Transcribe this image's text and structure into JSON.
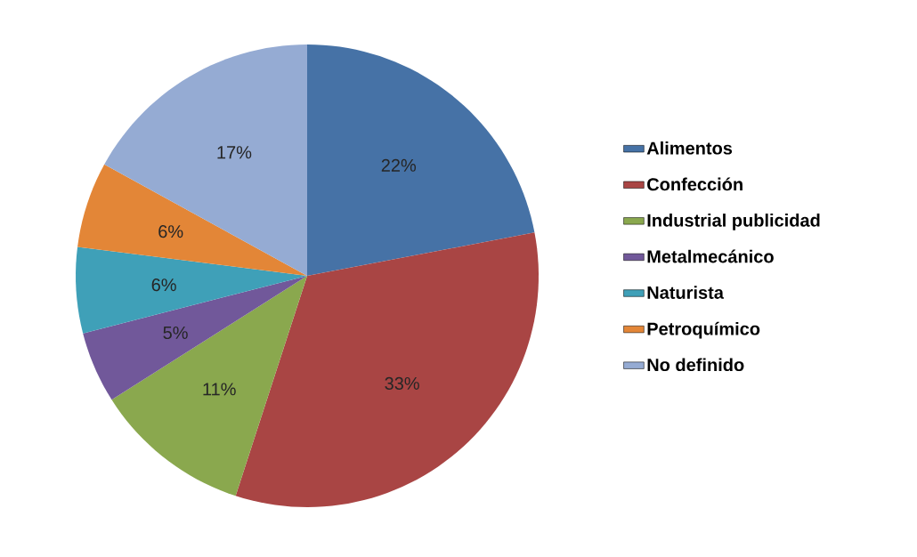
{
  "chart_data": {
    "type": "pie",
    "categories": [
      "Alimentos",
      "Confección",
      "Industrial publicidad",
      "Metalmecánico",
      "Naturista",
      "Petroquímico",
      "No definido"
    ],
    "values": [
      22,
      33,
      11,
      5,
      6,
      6,
      17
    ],
    "value_labels": [
      "22%",
      "33%",
      "11%",
      "5%",
      "6%",
      "6%",
      "17%"
    ],
    "colors": [
      "#4672a6",
      "#a94544",
      "#8aa84e",
      "#71589a",
      "#3fa0b8",
      "#e38637",
      "#95abd3"
    ],
    "legend": "right"
  }
}
